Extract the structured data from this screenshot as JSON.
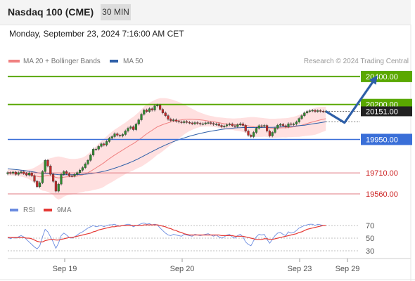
{
  "header": {
    "instrument": "Nasdaq 100 (CME)",
    "timeframe": "30 MIN",
    "datetime": "Monday, September 23, 2024 7:16:00 AM CET"
  },
  "legend": {
    "ma20_label": "MA 20 + Bollinger Bands",
    "ma50_label": "MA 50",
    "credit": "Research © 2024 Trading Central",
    "rsi_label": "RSI",
    "ma9_label": "9MA"
  },
  "colors": {
    "bull_candle": "#2e8b2e",
    "bear_candle": "#c62828",
    "bollinger_fill": "#ffd6d6",
    "ma20": "#f08080",
    "ma50": "#2e5fa8",
    "resistance": "#5aa800",
    "pivot": "#3a6fd8",
    "support": "#e07880",
    "arrow": "#2e5fa8",
    "rsi": "#6a8be0",
    "ma9": "#e53935"
  },
  "chart_data": [
    {
      "type": "candlestick",
      "title": "Nasdaq 100 (CME)",
      "timeframe": "30 MIN",
      "ylim": [
        19540,
        20470
      ],
      "x_ticks": [
        "Sep 19",
        "Sep 20",
        "Sep 23",
        "Sep 29"
      ],
      "current_price": "20151.00",
      "levels": [
        {
          "value": 20400,
          "label": "20400.00",
          "kind": "resistance"
        },
        {
          "value": 20200,
          "label": "20200.00",
          "kind": "resistance"
        },
        {
          "value": 19950,
          "label": "19950.00",
          "kind": "pivot"
        },
        {
          "value": 19710,
          "label": "19710.00",
          "kind": "support"
        },
        {
          "value": 19560,
          "label": "19560.00",
          "kind": "support"
        }
      ],
      "close_series": [
        19712,
        19708,
        19716,
        19700,
        19712,
        19718,
        19706,
        19695,
        19710,
        19690,
        19650,
        19612,
        19640,
        19720,
        19800,
        19760,
        19700,
        19650,
        19580,
        19630,
        19700,
        19720,
        19705,
        19690,
        19688,
        19700,
        19712,
        19730,
        19748,
        19775,
        19800,
        19838,
        19880,
        19880,
        19900,
        19918,
        19910,
        19935,
        19958,
        19970,
        19990,
        19980,
        19975,
        19985,
        20010,
        20030,
        20040,
        20020,
        20060,
        20090,
        20130,
        20160,
        20150,
        20170,
        20160,
        20190,
        20195,
        20165,
        20140,
        20120,
        20095,
        20085,
        20090,
        20080,
        20075,
        20070,
        20078,
        20072,
        20068,
        20062,
        20070,
        20065,
        20060,
        20062,
        20068,
        20070,
        20064,
        20058,
        20060,
        20050,
        20040,
        20046,
        20055,
        20060,
        20048,
        20042,
        20055,
        20062,
        20050,
        20010,
        19980,
        19970,
        20000,
        20030,
        20048,
        20044,
        20050,
        20010,
        19975,
        20000,
        20030,
        20052,
        20058,
        20048,
        20040,
        20062,
        20058,
        20060,
        20075,
        20100,
        20120,
        20140,
        20150,
        20155,
        20158,
        20150,
        20156,
        20152,
        20150,
        20151
      ],
      "ma20": [
        19714,
        19713,
        19712,
        19710,
        19709,
        19708,
        19706,
        19703,
        19700,
        19696,
        19692,
        19686,
        19682,
        19684,
        19690,
        19692,
        19690,
        19686,
        19678,
        19674,
        19676,
        19680,
        19682,
        19683,
        19683,
        19684,
        19688,
        19692,
        19696,
        19704,
        19712,
        19722,
        19734,
        19746,
        19758,
        19770,
        19783,
        19798,
        19812,
        19825,
        19838,
        19850,
        19862,
        19874,
        19886,
        19898,
        19910,
        19920,
        19933,
        19946,
        19960,
        19976,
        19990,
        20003,
        20015,
        20028,
        20040,
        20048,
        20056,
        20063,
        20069,
        20075,
        20080,
        20084,
        20087,
        20090,
        20093,
        20094,
        20095,
        20094,
        20093,
        20092,
        20090,
        20088,
        20085,
        20082,
        20080,
        20076,
        20073,
        20070,
        20066,
        20063,
        20061,
        20060,
        20059,
        20057,
        20056,
        20055,
        20054,
        20051,
        20047,
        20043,
        20040,
        20038,
        20037,
        20036,
        20036,
        20034,
        20031,
        20030,
        20030,
        20031,
        20032,
        20033,
        20033,
        20035,
        20037,
        20040,
        20043,
        20047,
        20052,
        20058,
        20064,
        20070,
        20075,
        20080,
        20085,
        20090,
        20094,
        20098
      ],
      "bollinger_upper": [
        19735,
        19734,
        19733,
        19732,
        19732,
        19732,
        19732,
        19733,
        19735,
        19740,
        19748,
        19760,
        19770,
        19785,
        19800,
        19810,
        19816,
        19820,
        19826,
        19828,
        19825,
        19820,
        19815,
        19812,
        19810,
        19810,
        19812,
        19815,
        19820,
        19830,
        19845,
        19862,
        19880,
        19900,
        19920,
        19938,
        19955,
        19972,
        19990,
        20005,
        20020,
        20032,
        20045,
        20058,
        20070,
        20085,
        20100,
        20112,
        20128,
        20145,
        20165,
        20185,
        20200,
        20212,
        20222,
        20232,
        20240,
        20245,
        20246,
        20245,
        20242,
        20238,
        20232,
        20225,
        20218,
        20210,
        20200,
        20190,
        20180,
        20170,
        20160,
        20150,
        20142,
        20135,
        20128,
        20122,
        20118,
        20114,
        20110,
        20108,
        20106,
        20104,
        20102,
        20101,
        20100,
        20100,
        20101,
        20102,
        20104,
        20106,
        20108,
        20110,
        20110,
        20108,
        20106,
        20104,
        20102,
        20100,
        20098,
        20098,
        20098,
        20099,
        20100,
        20101,
        20102,
        20104,
        20108,
        20112,
        20118,
        20125,
        20133,
        20142,
        20152,
        20162,
        20170,
        20176,
        20180,
        20182,
        20183,
        20184
      ],
      "bollinger_lower": [
        19693,
        19692,
        19691,
        19688,
        19686,
        19684,
        19680,
        19673,
        19665,
        19652,
        19636,
        19612,
        19594,
        19583,
        19580,
        19574,
        19564,
        19552,
        19530,
        19520,
        19527,
        19540,
        19549,
        19554,
        19556,
        19558,
        19564,
        19569,
        19572,
        19578,
        19579,
        19582,
        19588,
        19592,
        19596,
        19602,
        19611,
        19624,
        19634,
        19645,
        19656,
        19668,
        19679,
        19690,
        19702,
        19711,
        19720,
        19728,
        19738,
        19747,
        19755,
        19767,
        19780,
        19794,
        19808,
        19824,
        19840,
        19851,
        19866,
        19881,
        19896,
        19912,
        19928,
        19943,
        19956,
        19970,
        19986,
        19998,
        20010,
        20018,
        20026,
        20034,
        20038,
        20041,
        20042,
        20042,
        20042,
        20038,
        20036,
        20032,
        20026,
        20022,
        20020,
        20019,
        20018,
        20014,
        20011,
        20008,
        20004,
        19996,
        19986,
        19976,
        19970,
        19968,
        19968,
        19968,
        19970,
        19968,
        19964,
        19962,
        19962,
        19963,
        19964,
        19965,
        19964,
        19966,
        19966,
        19968,
        19968,
        19969,
        19971,
        19974,
        19976,
        19978,
        19980,
        19984,
        19990,
        19998,
        20005,
        20012
      ],
      "ma50": [
        19740,
        19738,
        19736,
        19734,
        19732,
        19730,
        19728,
        19725,
        19722,
        19719,
        19716,
        19712,
        19709,
        19707,
        19706,
        19705,
        19704,
        19702,
        19700,
        19698,
        19697,
        19697,
        19697,
        19697,
        19697,
        19697,
        19698,
        19699,
        19700,
        19701,
        19703,
        19705,
        19708,
        19711,
        19714,
        19718,
        19722,
        19727,
        19732,
        19738,
        19744,
        19750,
        19757,
        19764,
        19771,
        19779,
        19787,
        19795,
        19804,
        19813,
        19823,
        19833,
        19843,
        19853,
        19863,
        19873,
        19883,
        19892,
        19901,
        19910,
        19918,
        19926,
        19934,
        19941,
        19948,
        19955,
        19961,
        19967,
        19973,
        19978,
        19983,
        19988,
        19993,
        19997,
        20001,
        20005,
        20009,
        20012,
        20015,
        20018,
        20021,
        20024,
        20026,
        20028,
        20030,
        20032,
        20033,
        20034,
        20035,
        20035,
        20035,
        20035,
        20035,
        20035,
        20035,
        20035,
        20036,
        20036,
        20036,
        20036,
        20037,
        20038,
        20039,
        20040,
        20041,
        20042,
        20043,
        20044,
        20046,
        20048,
        20050,
        20052,
        20055,
        20058,
        20061,
        20064,
        20067,
        20070,
        20073,
        20076
      ],
      "projection": [
        {
          "x_index": 119,
          "value": 20151
        },
        {
          "x_index": 126,
          "value": 20070
        },
        {
          "x_index": 138,
          "value": 20400
        }
      ]
    },
    {
      "type": "line",
      "title": "RSI",
      "ylim": [
        20,
        80
      ],
      "y_ticks": [
        70,
        50,
        30
      ],
      "series": [
        {
          "name": "RSI",
          "values": [
            52,
            49,
            51,
            50,
            52,
            54,
            52,
            48,
            44,
            40,
            36,
            33,
            38,
            52,
            64,
            60,
            52,
            44,
            34,
            42,
            54,
            58,
            55,
            51,
            50,
            52,
            55,
            58,
            60,
            63,
            66,
            68,
            70,
            68,
            69,
            70,
            68,
            70,
            71,
            71,
            72,
            70,
            69,
            70,
            71,
            72,
            71,
            68,
            70,
            71,
            73,
            74,
            72,
            73,
            71,
            72,
            71,
            66,
            62,
            58,
            55,
            54,
            56,
            55,
            54,
            53,
            56,
            55,
            54,
            53,
            56,
            55,
            54,
            55,
            56,
            57,
            55,
            53,
            55,
            52,
            50,
            52,
            55,
            56,
            52,
            50,
            54,
            56,
            52,
            44,
            40,
            38,
            46,
            52,
            56,
            55,
            56,
            48,
            42,
            48,
            54,
            58,
            59,
            56,
            54,
            60,
            58,
            59,
            62,
            66,
            68,
            70,
            71,
            72,
            72,
            70,
            72,
            71,
            70,
            70
          ]
        },
        {
          "name": "9MA",
          "values": [
            51,
            51,
            51,
            51,
            51,
            51,
            51,
            50,
            50,
            49,
            47,
            45,
            44,
            44,
            46,
            47,
            48,
            48,
            47,
            47,
            48,
            49,
            50,
            51,
            51,
            52,
            53,
            54,
            55,
            56,
            57,
            58,
            60,
            61,
            63,
            64,
            65,
            66,
            67,
            68,
            68,
            69,
            69,
            70,
            70,
            70,
            70,
            70,
            70,
            70,
            70,
            71,
            71,
            71,
            71,
            71,
            71,
            70,
            69,
            68,
            66,
            65,
            63,
            62,
            60,
            59,
            57,
            56,
            55,
            55,
            55,
            55,
            55,
            55,
            55,
            55,
            55,
            55,
            55,
            55,
            54,
            54,
            54,
            54,
            54,
            53,
            53,
            53,
            53,
            52,
            51,
            50,
            49,
            48,
            48,
            48,
            49,
            49,
            48,
            48,
            49,
            50,
            51,
            52,
            53,
            54,
            55,
            56,
            57,
            59,
            60,
            62,
            64,
            65,
            66,
            67,
            68,
            69,
            70,
            70
          ]
        }
      ]
    }
  ]
}
